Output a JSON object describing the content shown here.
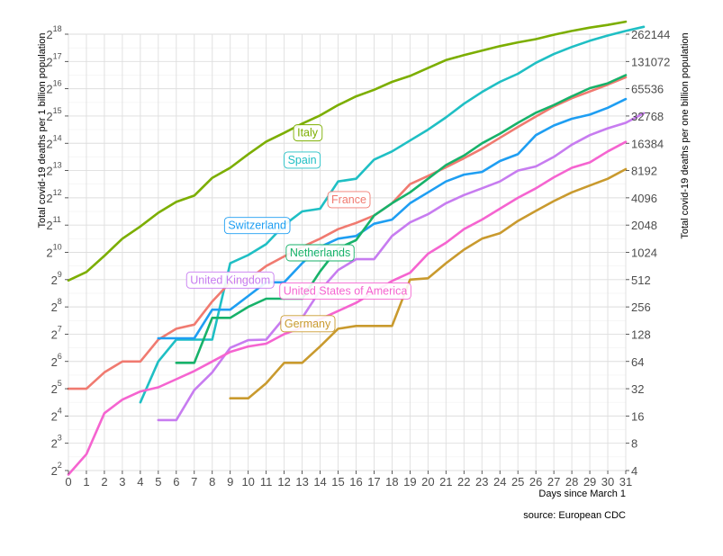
{
  "chart_data": {
    "type": "line",
    "y_scale": "log2",
    "xlabel": "Days since March 1",
    "ylabel_left": "Total covid-19 deaths per 1 billion population",
    "ylabel_right": "Total covid-19 deaths per one billion population",
    "caption": "source: European CDC",
    "xlim": [
      0,
      31
    ],
    "ylim_log2": [
      2,
      18
    ],
    "x_ticks": [
      "0",
      "1",
      "2",
      "3",
      "4",
      "5",
      "6",
      "7",
      "8",
      "9",
      "10",
      "11",
      "12",
      "13",
      "14",
      "15",
      "16",
      "17",
      "18",
      "19",
      "20",
      "21",
      "22",
      "23",
      "24",
      "25",
      "26",
      "27",
      "28",
      "29",
      "30",
      "31"
    ],
    "y_ticks_left": [
      {
        "base": "2",
        "exp": "2"
      },
      {
        "base": "2",
        "exp": "3"
      },
      {
        "base": "2",
        "exp": "4"
      },
      {
        "base": "2",
        "exp": "5"
      },
      {
        "base": "2",
        "exp": "6"
      },
      {
        "base": "2",
        "exp": "7"
      },
      {
        "base": "2",
        "exp": "8"
      },
      {
        "base": "2",
        "exp": "9"
      },
      {
        "base": "2",
        "exp": "10"
      },
      {
        "base": "2",
        "exp": "11"
      },
      {
        "base": "2",
        "exp": "12"
      },
      {
        "base": "2",
        "exp": "13"
      },
      {
        "base": "2",
        "exp": "14"
      },
      {
        "base": "2",
        "exp": "15"
      },
      {
        "base": "2",
        "exp": "16"
      },
      {
        "base": "2",
        "exp": "17"
      },
      {
        "base": "2",
        "exp": "18"
      }
    ],
    "y_ticks_right": [
      "4",
      "8",
      "16",
      "32",
      "64",
      "128",
      "256",
      "512",
      "1024",
      "2048",
      "4096",
      "8192",
      "16384",
      "32768",
      "65536",
      "131072",
      "262144"
    ],
    "series": [
      {
        "name": "Italy",
        "color": "#7cae00",
        "x0": 0,
        "log2_values": [
          8.97,
          9.28,
          9.87,
          10.5,
          10.95,
          11.45,
          11.85,
          12.08,
          12.73,
          13.1,
          13.6,
          14.06,
          14.38,
          14.72,
          15.02,
          15.4,
          15.72,
          15.96,
          16.25,
          16.47,
          16.76,
          17.05,
          17.23,
          17.4,
          17.56,
          17.7,
          17.82,
          17.98,
          18.12,
          18.24,
          18.34,
          18.46
        ]
      },
      {
        "name": "Spain",
        "color": "#1fbfc4",
        "x0": 4,
        "log2_values": [
          4.5,
          6.0,
          6.8,
          6.8,
          6.8,
          9.6,
          9.9,
          10.3,
          11.0,
          11.5,
          11.6,
          12.6,
          12.7,
          13.4,
          13.7,
          14.1,
          14.5,
          14.95,
          15.45,
          15.88,
          16.25,
          16.55,
          16.95,
          17.27,
          17.53,
          17.76,
          17.95,
          18.12,
          18.27
        ]
      },
      {
        "name": "France",
        "color": "#f07a70",
        "x0": 0,
        "log2_values": [
          5.0,
          5.0,
          5.6,
          6.0,
          6.0,
          6.8,
          7.2,
          7.35,
          8.2,
          8.9,
          9.0,
          9.5,
          9.85,
          10.2,
          10.5,
          10.85,
          11.08,
          11.35,
          11.8,
          12.5,
          12.8,
          13.12,
          13.45,
          13.8,
          14.2,
          14.6,
          14.98,
          15.35,
          15.65,
          15.9,
          16.15,
          16.42
        ]
      },
      {
        "name": "Switzerland",
        "color": "#1e9ef2",
        "x0": 5,
        "log2_values": [
          6.85,
          6.85,
          6.85,
          7.9,
          7.9,
          8.4,
          8.9,
          8.9,
          9.6,
          10.2,
          10.5,
          10.6,
          11.05,
          11.2,
          11.8,
          12.2,
          12.6,
          12.85,
          12.95,
          13.35,
          13.6,
          14.3,
          14.65,
          14.9,
          15.05,
          15.3,
          15.62
        ]
      },
      {
        "name": "Netherlands",
        "color": "#17b26a",
        "x0": 6,
        "log2_values": [
          5.95,
          5.95,
          7.6,
          7.6,
          8.0,
          8.3,
          8.3,
          8.3,
          9.3,
          10.15,
          10.45,
          11.35,
          11.8,
          12.2,
          12.7,
          13.2,
          13.55,
          14.0,
          14.35,
          14.75,
          15.12,
          15.4,
          15.72,
          16.02,
          16.2,
          16.5
        ]
      },
      {
        "name": "United Kingdom",
        "color": "#c77cf0",
        "x0": 5,
        "log2_values": [
          3.85,
          3.85,
          4.95,
          5.6,
          6.5,
          6.78,
          6.8,
          7.6,
          7.6,
          8.6,
          9.35,
          9.75,
          9.75,
          10.6,
          11.1,
          11.4,
          11.8,
          12.1,
          12.35,
          12.6,
          13.0,
          13.15,
          13.5,
          13.95,
          14.3,
          14.55,
          14.75,
          15.1
        ]
      },
      {
        "name": "United States of America",
        "color": "#f564d0",
        "x0": 0,
        "log2_values": [
          1.85,
          2.6,
          4.1,
          4.6,
          4.9,
          5.05,
          5.35,
          5.65,
          6.0,
          6.35,
          6.55,
          6.65,
          7.0,
          7.25,
          7.55,
          7.85,
          8.15,
          8.55,
          8.95,
          9.25,
          9.95,
          10.35,
          10.85,
          11.2,
          11.6,
          12.0,
          12.35,
          12.75,
          13.1,
          13.3,
          13.7,
          14.05
        ]
      },
      {
        "name": "Germany",
        "color": "#c99a2e",
        "x0": 9,
        "log2_values": [
          4.65,
          4.65,
          5.2,
          5.95,
          5.95,
          6.55,
          7.2,
          7.3,
          7.3,
          7.3,
          9.0,
          9.05,
          9.6,
          10.1,
          10.5,
          10.7,
          11.15,
          11.52,
          11.88,
          12.2,
          12.45,
          12.7,
          13.05
        ]
      }
    ],
    "labels": [
      {
        "text": "Italy",
        "series": "Italy",
        "x": 13.3,
        "y_log2": 14.4
      },
      {
        "text": "Spain",
        "series": "Spain",
        "x": 13.0,
        "y_log2": 13.4
      },
      {
        "text": "France",
        "series": "France",
        "x": 15.6,
        "y_log2": 11.95
      },
      {
        "text": "Switzerland",
        "series": "Switzerland",
        "x": 10.5,
        "y_log2": 11.0
      },
      {
        "text": "Netherlands",
        "series": "Netherlands",
        "x": 14.0,
        "y_log2": 10.0
      },
      {
        "text": "United Kingdom",
        "series": "United Kingdom",
        "x": 9.0,
        "y_log2": 9.0
      },
      {
        "text": "United States of America",
        "series": "United States of America",
        "x": 15.4,
        "y_log2": 8.6
      },
      {
        "text": "Germany",
        "series": "Germany",
        "x": 13.3,
        "y_log2": 7.4
      }
    ]
  }
}
